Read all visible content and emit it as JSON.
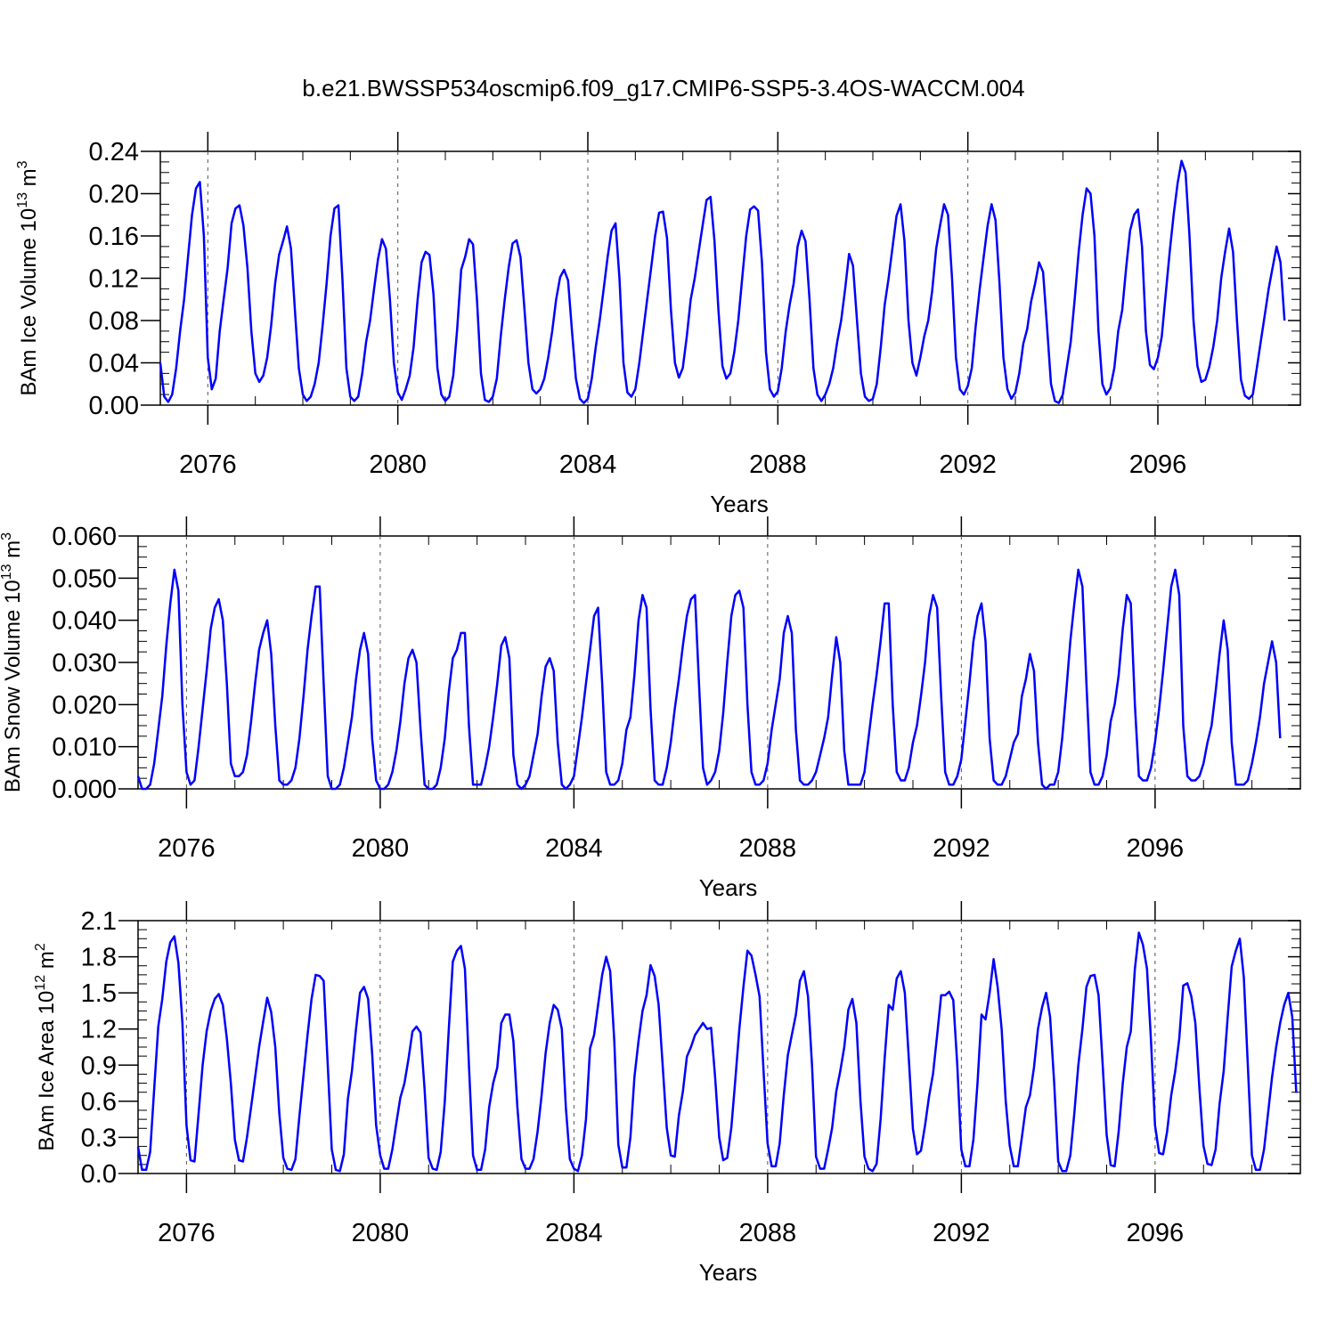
{
  "title": "b.e21.BWSSP534oscmip6.f09_g17.CMIP6-SSP5-3.4OS-WACCM.004",
  "colors": {
    "line": "#0000ff",
    "axis": "#000000",
    "grid": "#555555"
  },
  "chart_data": [
    {
      "type": "line",
      "title": "b.e21.BWSSP534oscmip6.f09_g17.CMIP6-SSP5-3.4OS-WACCM.004",
      "xlabel": "Years",
      "ylabel_main": "BAm Ice Volume 10",
      "ylabel_exp": "13",
      "ylabel_unit": " m",
      "ylabel_unit_exp": "3",
      "ylim": [
        0,
        0.24
      ],
      "xlim": [
        2075.0,
        2099.0
      ],
      "yticks": [
        "0.00",
        "0.04",
        "0.08",
        "0.12",
        "0.16",
        "0.20",
        "0.24"
      ],
      "xticks": [
        "2076",
        "2080",
        "2084",
        "2088",
        "2092",
        "2096"
      ],
      "series": [
        {
          "x_start": 2075.0,
          "x_step": 0.08333,
          "values": [
            0.04,
            0.008,
            0.003,
            0.01,
            0.035,
            0.07,
            0.1,
            0.14,
            0.18,
            0.205,
            0.211,
            0.16,
            0.045,
            0.015,
            0.025,
            0.07,
            0.1,
            0.13,
            0.172,
            0.186,
            0.189,
            0.17,
            0.13,
            0.07,
            0.03,
            0.022,
            0.028,
            0.045,
            0.075,
            0.115,
            0.142,
            0.155,
            0.169,
            0.148,
            0.09,
            0.035,
            0.01,
            0.004,
            0.008,
            0.02,
            0.04,
            0.075,
            0.115,
            0.16,
            0.186,
            0.189,
            0.12,
            0.035,
            0.008,
            0.004,
            0.008,
            0.03,
            0.06,
            0.08,
            0.11,
            0.138,
            0.157,
            0.148,
            0.1,
            0.04,
            0.012,
            0.005,
            0.015,
            0.028,
            0.055,
            0.1,
            0.135,
            0.145,
            0.142,
            0.105,
            0.035,
            0.01,
            0.004,
            0.008,
            0.028,
            0.072,
            0.128,
            0.14,
            0.157,
            0.152,
            0.1,
            0.03,
            0.005,
            0.003,
            0.008,
            0.025,
            0.065,
            0.1,
            0.13,
            0.153,
            0.156,
            0.14,
            0.09,
            0.04,
            0.015,
            0.011,
            0.015,
            0.025,
            0.045,
            0.07,
            0.1,
            0.121,
            0.128,
            0.118,
            0.07,
            0.025,
            0.006,
            0.002,
            0.006,
            0.025,
            0.055,
            0.08,
            0.11,
            0.14,
            0.165,
            0.172,
            0.12,
            0.04,
            0.012,
            0.008,
            0.015,
            0.04,
            0.07,
            0.1,
            0.13,
            0.16,
            0.182,
            0.183,
            0.158,
            0.09,
            0.04,
            0.026,
            0.035,
            0.065,
            0.1,
            0.12,
            0.145,
            0.17,
            0.194,
            0.197,
            0.155,
            0.09,
            0.037,
            0.025,
            0.03,
            0.05,
            0.08,
            0.12,
            0.16,
            0.185,
            0.188,
            0.184,
            0.135,
            0.05,
            0.015,
            0.008,
            0.013,
            0.035,
            0.07,
            0.095,
            0.115,
            0.15,
            0.165,
            0.155,
            0.1,
            0.035,
            0.01,
            0.004,
            0.01,
            0.02,
            0.035,
            0.06,
            0.08,
            0.11,
            0.143,
            0.132,
            0.08,
            0.03,
            0.008,
            0.004,
            0.006,
            0.02,
            0.055,
            0.095,
            0.12,
            0.15,
            0.179,
            0.19,
            0.155,
            0.08,
            0.04,
            0.028,
            0.045,
            0.065,
            0.08,
            0.108,
            0.148,
            0.17,
            0.19,
            0.18,
            0.12,
            0.045,
            0.015,
            0.01,
            0.018,
            0.035,
            0.075,
            0.11,
            0.14,
            0.17,
            0.19,
            0.175,
            0.115,
            0.045,
            0.015,
            0.006,
            0.012,
            0.03,
            0.058,
            0.072,
            0.098,
            0.115,
            0.135,
            0.126,
            0.075,
            0.02,
            0.004,
            0.002,
            0.01,
            0.035,
            0.06,
            0.1,
            0.145,
            0.18,
            0.205,
            0.2,
            0.16,
            0.07,
            0.02,
            0.01,
            0.016,
            0.035,
            0.07,
            0.09,
            0.13,
            0.165,
            0.18,
            0.185,
            0.15,
            0.07,
            0.038,
            0.034,
            0.045,
            0.065,
            0.105,
            0.145,
            0.18,
            0.21,
            0.231,
            0.22,
            0.16,
            0.08,
            0.037,
            0.022,
            0.024,
            0.036,
            0.055,
            0.08,
            0.12,
            0.145,
            0.167,
            0.145,
            0.08,
            0.024,
            0.009,
            0.006,
            0.01,
            0.035,
            0.06,
            0.085,
            0.11,
            0.13,
            0.15,
            0.135,
            0.08
          ]
        }
      ]
    },
    {
      "type": "line",
      "xlabel": "Years",
      "ylabel_main": "BAm Snow Volume 10",
      "ylabel_exp": "13",
      "ylabel_unit": " m",
      "ylabel_unit_exp": "3",
      "ylim": [
        0,
        0.06
      ],
      "xlim": [
        2075.0,
        2099.0
      ],
      "yticks": [
        "0.000",
        "0.010",
        "0.020",
        "0.030",
        "0.040",
        "0.050",
        "0.060"
      ],
      "xticks": [
        "2076",
        "2080",
        "2084",
        "2088",
        "2092",
        "2096"
      ],
      "series": [
        {
          "x_start": 2075.0,
          "x_step": 0.08333,
          "values": [
            0.003,
            0.0,
            0.0,
            0.001,
            0.006,
            0.014,
            0.022,
            0.034,
            0.044,
            0.052,
            0.047,
            0.02,
            0.004,
            0.001,
            0.002,
            0.01,
            0.019,
            0.028,
            0.038,
            0.043,
            0.045,
            0.04,
            0.025,
            0.006,
            0.003,
            0.003,
            0.004,
            0.008,
            0.016,
            0.025,
            0.033,
            0.037,
            0.04,
            0.032,
            0.015,
            0.002,
            0.001,
            0.001,
            0.002,
            0.005,
            0.012,
            0.022,
            0.033,
            0.041,
            0.048,
            0.048,
            0.025,
            0.003,
            0.0,
            0.0,
            0.001,
            0.005,
            0.011,
            0.017,
            0.026,
            0.033,
            0.037,
            0.032,
            0.012,
            0.002,
            0.0,
            0.0,
            0.001,
            0.004,
            0.009,
            0.016,
            0.025,
            0.031,
            0.033,
            0.03,
            0.014,
            0.001,
            0.0,
            0.0,
            0.001,
            0.005,
            0.012,
            0.023,
            0.031,
            0.033,
            0.037,
            0.037,
            0.015,
            0.001,
            0.001,
            0.001,
            0.005,
            0.01,
            0.017,
            0.025,
            0.034,
            0.036,
            0.031,
            0.008,
            0.001,
            0.0,
            0.001,
            0.003,
            0.008,
            0.013,
            0.022,
            0.029,
            0.031,
            0.028,
            0.011,
            0.001,
            0.0,
            0.001,
            0.003,
            0.01,
            0.017,
            0.025,
            0.033,
            0.041,
            0.043,
            0.025,
            0.004,
            0.001,
            0.001,
            0.002,
            0.006,
            0.014,
            0.017,
            0.027,
            0.04,
            0.046,
            0.043,
            0.019,
            0.002,
            0.001,
            0.001,
            0.005,
            0.011,
            0.019,
            0.026,
            0.034,
            0.041,
            0.045,
            0.046,
            0.025,
            0.005,
            0.001,
            0.002,
            0.004,
            0.009,
            0.018,
            0.03,
            0.041,
            0.046,
            0.047,
            0.043,
            0.02,
            0.004,
            0.001,
            0.001,
            0.002,
            0.006,
            0.014,
            0.02,
            0.026,
            0.037,
            0.041,
            0.037,
            0.014,
            0.002,
            0.001,
            0.001,
            0.002,
            0.004,
            0.008,
            0.012,
            0.017,
            0.027,
            0.036,
            0.03,
            0.009,
            0.001,
            0.001,
            0.001,
            0.001,
            0.004,
            0.012,
            0.02,
            0.027,
            0.035,
            0.044,
            0.044,
            0.02,
            0.004,
            0.002,
            0.002,
            0.005,
            0.011,
            0.015,
            0.022,
            0.03,
            0.041,
            0.046,
            0.043,
            0.022,
            0.004,
            0.001,
            0.001,
            0.003,
            0.007,
            0.016,
            0.025,
            0.035,
            0.041,
            0.044,
            0.035,
            0.012,
            0.002,
            0.001,
            0.001,
            0.003,
            0.007,
            0.011,
            0.013,
            0.022,
            0.026,
            0.032,
            0.028,
            0.011,
            0.001,
            0.0,
            0.001,
            0.001,
            0.004,
            0.012,
            0.023,
            0.035,
            0.044,
            0.052,
            0.048,
            0.025,
            0.004,
            0.001,
            0.001,
            0.003,
            0.008,
            0.016,
            0.02,
            0.027,
            0.038,
            0.046,
            0.044,
            0.02,
            0.003,
            0.002,
            0.002,
            0.005,
            0.011,
            0.019,
            0.028,
            0.038,
            0.048,
            0.052,
            0.046,
            0.015,
            0.003,
            0.002,
            0.002,
            0.003,
            0.006,
            0.011,
            0.015,
            0.023,
            0.032,
            0.04,
            0.033,
            0.011,
            0.001,
            0.001,
            0.001,
            0.002,
            0.006,
            0.011,
            0.017,
            0.025,
            0.03,
            0.035,
            0.03,
            0.012
          ]
        }
      ]
    },
    {
      "type": "line",
      "xlabel": "Years",
      "ylabel_main": "BAm Ice Area 10",
      "ylabel_exp": "12",
      "ylabel_unit": " m",
      "ylabel_unit_exp": "2",
      "ylim": [
        0,
        2.1
      ],
      "xlim": [
        2075.0,
        2099.0
      ],
      "yticks": [
        "0.0",
        "0.3",
        "0.6",
        "0.9",
        "1.2",
        "1.5",
        "1.8",
        "2.1"
      ],
      "xticks": [
        "2076",
        "2080",
        "2084",
        "2088",
        "2092",
        "2096"
      ],
      "series": [
        {
          "x_start": 2075.0,
          "x_step": 0.08333,
          "values": [
            0.22,
            0.03,
            0.03,
            0.18,
            0.7,
            1.22,
            1.45,
            1.76,
            1.92,
            1.97,
            1.75,
            1.25,
            0.4,
            0.11,
            0.1,
            0.5,
            0.9,
            1.18,
            1.35,
            1.45,
            1.49,
            1.4,
            1.12,
            0.75,
            0.28,
            0.11,
            0.1,
            0.3,
            0.55,
            0.8,
            1.05,
            1.26,
            1.46,
            1.34,
            1.05,
            0.5,
            0.13,
            0.04,
            0.03,
            0.12,
            0.48,
            0.82,
            1.15,
            1.45,
            1.65,
            1.64,
            1.6,
            0.9,
            0.2,
            0.03,
            0.02,
            0.16,
            0.62,
            0.85,
            1.2,
            1.5,
            1.55,
            1.45,
            1.0,
            0.4,
            0.15,
            0.04,
            0.04,
            0.2,
            0.42,
            0.63,
            0.75,
            0.95,
            1.18,
            1.22,
            1.17,
            0.7,
            0.13,
            0.04,
            0.03,
            0.18,
            0.6,
            1.2,
            1.76,
            1.85,
            1.89,
            1.7,
            0.9,
            0.15,
            0.03,
            0.03,
            0.2,
            0.55,
            0.75,
            0.88,
            1.25,
            1.32,
            1.32,
            1.1,
            0.55,
            0.12,
            0.04,
            0.04,
            0.12,
            0.35,
            0.65,
            1.0,
            1.25,
            1.4,
            1.36,
            1.2,
            0.55,
            0.12,
            0.04,
            0.02,
            0.15,
            0.45,
            1.04,
            1.15,
            1.4,
            1.65,
            1.8,
            1.68,
            1.1,
            0.24,
            0.05,
            0.05,
            0.3,
            0.8,
            1.1,
            1.35,
            1.48,
            1.73,
            1.64,
            1.4,
            0.9,
            0.38,
            0.15,
            0.14,
            0.48,
            0.68,
            0.97,
            1.05,
            1.15,
            1.2,
            1.25,
            1.2,
            1.21,
            0.8,
            0.3,
            0.11,
            0.13,
            0.38,
            0.78,
            1.2,
            1.55,
            1.85,
            1.81,
            1.65,
            1.47,
            0.85,
            0.25,
            0.06,
            0.06,
            0.25,
            0.65,
            0.98,
            1.15,
            1.32,
            1.6,
            1.68,
            1.47,
            0.9,
            0.14,
            0.04,
            0.04,
            0.2,
            0.38,
            0.68,
            0.85,
            1.05,
            1.36,
            1.45,
            1.25,
            0.6,
            0.14,
            0.04,
            0.02,
            0.08,
            0.45,
            0.95,
            1.4,
            1.36,
            1.62,
            1.68,
            1.5,
            0.95,
            0.37,
            0.16,
            0.19,
            0.4,
            0.64,
            0.83,
            1.15,
            1.48,
            1.48,
            1.51,
            1.44,
            0.9,
            0.2,
            0.06,
            0.06,
            0.28,
            0.75,
            1.32,
            1.28,
            1.5,
            1.78,
            1.55,
            1.2,
            0.6,
            0.23,
            0.06,
            0.06,
            0.3,
            0.55,
            0.65,
            0.88,
            1.2,
            1.38,
            1.5,
            1.3,
            0.75,
            0.1,
            0.02,
            0.02,
            0.15,
            0.5,
            0.9,
            1.2,
            1.55,
            1.64,
            1.65,
            1.48,
            0.92,
            0.32,
            0.07,
            0.06,
            0.35,
            0.75,
            1.05,
            1.18,
            1.7,
            2.0,
            1.9,
            1.7,
            1.1,
            0.4,
            0.17,
            0.16,
            0.35,
            0.65,
            0.85,
            1.12,
            1.56,
            1.58,
            1.47,
            1.25,
            0.7,
            0.23,
            0.08,
            0.07,
            0.2,
            0.58,
            0.85,
            1.3,
            1.72,
            1.85,
            1.95,
            1.63,
            0.9,
            0.15,
            0.03,
            0.03,
            0.2,
            0.5,
            0.8,
            1.05,
            1.25,
            1.4,
            1.5,
            1.3,
            0.67
          ]
        }
      ]
    }
  ]
}
